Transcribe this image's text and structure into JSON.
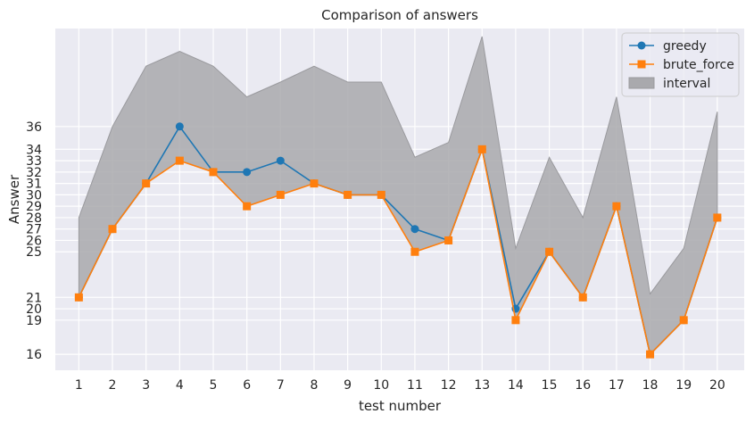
{
  "chart_data": {
    "type": "line",
    "title": "Comparison of answers",
    "xlabel": "test number",
    "ylabel": "Answer",
    "x": [
      1,
      2,
      3,
      4,
      5,
      6,
      7,
      8,
      9,
      10,
      11,
      12,
      13,
      14,
      15,
      16,
      17,
      18,
      19,
      20
    ],
    "xlim": [
      0.3,
      20.8
    ],
    "ylim": [
      14.6,
      44.6
    ],
    "yticks": [
      16,
      19,
      20,
      21,
      25,
      26,
      27,
      28,
      29,
      30,
      31,
      32,
      33,
      34,
      36
    ],
    "grid": true,
    "legend_position": "top-right",
    "series": [
      {
        "name": "greedy",
        "marker": "circle",
        "color": "#1f77b4",
        "values": [
          21,
          27,
          31,
          36,
          32,
          32,
          33,
          31,
          30,
          30,
          27,
          26,
          34,
          20,
          25,
          21,
          29,
          16,
          19,
          28
        ]
      },
      {
        "name": "brute_force",
        "marker": "square",
        "color": "#ff7f0e",
        "values": [
          21,
          27,
          31,
          33,
          32,
          29,
          30,
          31,
          30,
          30,
          25,
          26,
          34,
          19,
          25,
          21,
          29,
          16,
          19,
          28
        ]
      }
    ],
    "interval": {
      "name": "interval",
      "color": "#a9a9ad",
      "lower": [
        21,
        27,
        31,
        33,
        32,
        29,
        30,
        31,
        30,
        30,
        25,
        26,
        34,
        19,
        25,
        21,
        29,
        16,
        19,
        28
      ],
      "upper": [
        28,
        36,
        41.3,
        42.6,
        41.3,
        38.6,
        39.9,
        41.3,
        39.9,
        39.9,
        33.3,
        34.6,
        43.9,
        25.3,
        33.3,
        28,
        38.6,
        21.3,
        25.3,
        37.3
      ]
    }
  }
}
